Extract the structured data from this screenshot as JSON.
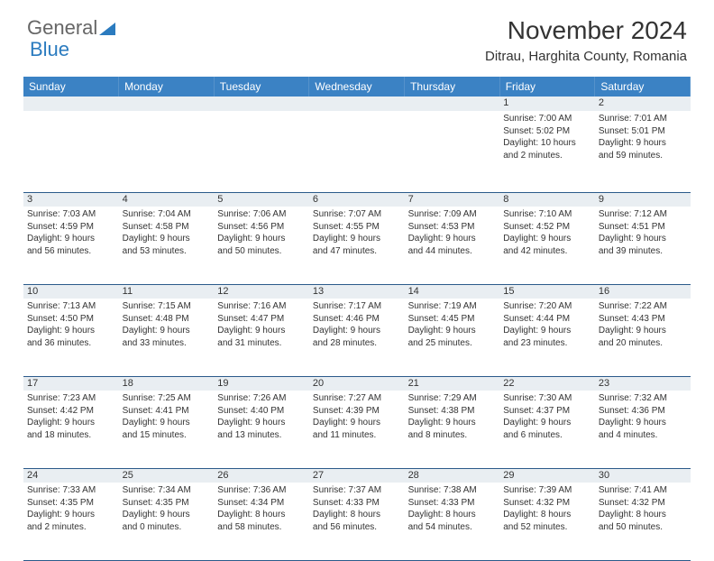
{
  "logo": {
    "part1": "General",
    "part2": "Blue"
  },
  "title": "November 2024",
  "location": "Ditrau, Harghita County, Romania",
  "colors": {
    "header_bg": "#3b82c4",
    "header_text": "#ffffff",
    "daynum_bg": "#e9eef2",
    "border": "#2b5a8a",
    "logo_blue": "#2b7bbf"
  },
  "weekdays": [
    "Sunday",
    "Monday",
    "Tuesday",
    "Wednesday",
    "Thursday",
    "Friday",
    "Saturday"
  ],
  "weeks": [
    [
      null,
      null,
      null,
      null,
      null,
      {
        "n": "1",
        "sunrise": "7:00 AM",
        "sunset": "5:02 PM",
        "dl1": "Daylight: 10 hours",
        "dl2": "and 2 minutes."
      },
      {
        "n": "2",
        "sunrise": "7:01 AM",
        "sunset": "5:01 PM",
        "dl1": "Daylight: 9 hours",
        "dl2": "and 59 minutes."
      }
    ],
    [
      {
        "n": "3",
        "sunrise": "7:03 AM",
        "sunset": "4:59 PM",
        "dl1": "Daylight: 9 hours",
        "dl2": "and 56 minutes."
      },
      {
        "n": "4",
        "sunrise": "7:04 AM",
        "sunset": "4:58 PM",
        "dl1": "Daylight: 9 hours",
        "dl2": "and 53 minutes."
      },
      {
        "n": "5",
        "sunrise": "7:06 AM",
        "sunset": "4:56 PM",
        "dl1": "Daylight: 9 hours",
        "dl2": "and 50 minutes."
      },
      {
        "n": "6",
        "sunrise": "7:07 AM",
        "sunset": "4:55 PM",
        "dl1": "Daylight: 9 hours",
        "dl2": "and 47 minutes."
      },
      {
        "n": "7",
        "sunrise": "7:09 AM",
        "sunset": "4:53 PM",
        "dl1": "Daylight: 9 hours",
        "dl2": "and 44 minutes."
      },
      {
        "n": "8",
        "sunrise": "7:10 AM",
        "sunset": "4:52 PM",
        "dl1": "Daylight: 9 hours",
        "dl2": "and 42 minutes."
      },
      {
        "n": "9",
        "sunrise": "7:12 AM",
        "sunset": "4:51 PM",
        "dl1": "Daylight: 9 hours",
        "dl2": "and 39 minutes."
      }
    ],
    [
      {
        "n": "10",
        "sunrise": "7:13 AM",
        "sunset": "4:50 PM",
        "dl1": "Daylight: 9 hours",
        "dl2": "and 36 minutes."
      },
      {
        "n": "11",
        "sunrise": "7:15 AM",
        "sunset": "4:48 PM",
        "dl1": "Daylight: 9 hours",
        "dl2": "and 33 minutes."
      },
      {
        "n": "12",
        "sunrise": "7:16 AM",
        "sunset": "4:47 PM",
        "dl1": "Daylight: 9 hours",
        "dl2": "and 31 minutes."
      },
      {
        "n": "13",
        "sunrise": "7:17 AM",
        "sunset": "4:46 PM",
        "dl1": "Daylight: 9 hours",
        "dl2": "and 28 minutes."
      },
      {
        "n": "14",
        "sunrise": "7:19 AM",
        "sunset": "4:45 PM",
        "dl1": "Daylight: 9 hours",
        "dl2": "and 25 minutes."
      },
      {
        "n": "15",
        "sunrise": "7:20 AM",
        "sunset": "4:44 PM",
        "dl1": "Daylight: 9 hours",
        "dl2": "and 23 minutes."
      },
      {
        "n": "16",
        "sunrise": "7:22 AM",
        "sunset": "4:43 PM",
        "dl1": "Daylight: 9 hours",
        "dl2": "and 20 minutes."
      }
    ],
    [
      {
        "n": "17",
        "sunrise": "7:23 AM",
        "sunset": "4:42 PM",
        "dl1": "Daylight: 9 hours",
        "dl2": "and 18 minutes."
      },
      {
        "n": "18",
        "sunrise": "7:25 AM",
        "sunset": "4:41 PM",
        "dl1": "Daylight: 9 hours",
        "dl2": "and 15 minutes."
      },
      {
        "n": "19",
        "sunrise": "7:26 AM",
        "sunset": "4:40 PM",
        "dl1": "Daylight: 9 hours",
        "dl2": "and 13 minutes."
      },
      {
        "n": "20",
        "sunrise": "7:27 AM",
        "sunset": "4:39 PM",
        "dl1": "Daylight: 9 hours",
        "dl2": "and 11 minutes."
      },
      {
        "n": "21",
        "sunrise": "7:29 AM",
        "sunset": "4:38 PM",
        "dl1": "Daylight: 9 hours",
        "dl2": "and 8 minutes."
      },
      {
        "n": "22",
        "sunrise": "7:30 AM",
        "sunset": "4:37 PM",
        "dl1": "Daylight: 9 hours",
        "dl2": "and 6 minutes."
      },
      {
        "n": "23",
        "sunrise": "7:32 AM",
        "sunset": "4:36 PM",
        "dl1": "Daylight: 9 hours",
        "dl2": "and 4 minutes."
      }
    ],
    [
      {
        "n": "24",
        "sunrise": "7:33 AM",
        "sunset": "4:35 PM",
        "dl1": "Daylight: 9 hours",
        "dl2": "and 2 minutes."
      },
      {
        "n": "25",
        "sunrise": "7:34 AM",
        "sunset": "4:35 PM",
        "dl1": "Daylight: 9 hours",
        "dl2": "and 0 minutes."
      },
      {
        "n": "26",
        "sunrise": "7:36 AM",
        "sunset": "4:34 PM",
        "dl1": "Daylight: 8 hours",
        "dl2": "and 58 minutes."
      },
      {
        "n": "27",
        "sunrise": "7:37 AM",
        "sunset": "4:33 PM",
        "dl1": "Daylight: 8 hours",
        "dl2": "and 56 minutes."
      },
      {
        "n": "28",
        "sunrise": "7:38 AM",
        "sunset": "4:33 PM",
        "dl1": "Daylight: 8 hours",
        "dl2": "and 54 minutes."
      },
      {
        "n": "29",
        "sunrise": "7:39 AM",
        "sunset": "4:32 PM",
        "dl1": "Daylight: 8 hours",
        "dl2": "and 52 minutes."
      },
      {
        "n": "30",
        "sunrise": "7:41 AM",
        "sunset": "4:32 PM",
        "dl1": "Daylight: 8 hours",
        "dl2": "and 50 minutes."
      }
    ]
  ],
  "labels": {
    "sunrise": "Sunrise: ",
    "sunset": "Sunset: "
  }
}
